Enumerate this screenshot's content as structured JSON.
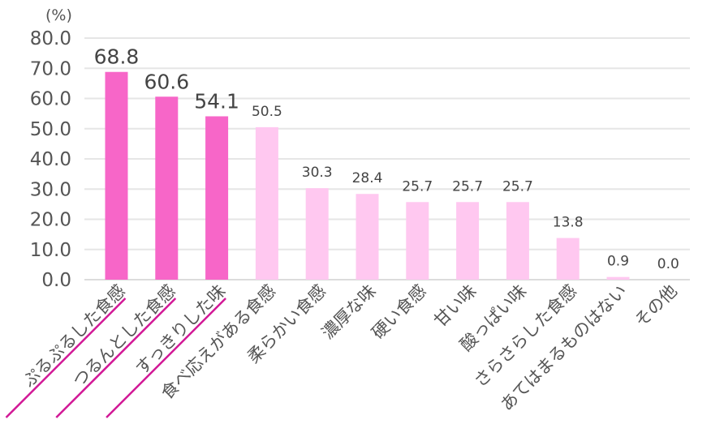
{
  "chart_data": {
    "type": "bar",
    "unit": "(%)",
    "categories": [
      "ぷるぷるした食感",
      "つるんとした食感",
      "すっきりした味",
      "食べ応えがある食感",
      "柔らかい食感",
      "濃厚な味",
      "硬い食感",
      "甘い味",
      "酸っぱい味",
      "さらさらした食感",
      "あてはまるものはない",
      "その他"
    ],
    "values": [
      68.8,
      60.6,
      54.1,
      50.5,
      30.3,
      28.4,
      25.7,
      25.7,
      25.7,
      13.8,
      0.9,
      0.0
    ],
    "value_labels": [
      "68.8",
      "60.6",
      "54.1",
      "50.5",
      "30.3",
      "28.4",
      "25.7",
      "25.7",
      "25.7",
      "13.8",
      "0.9",
      "0.0"
    ],
    "highlight_count": 3,
    "ylim": [
      0,
      80
    ],
    "yticks": [
      "0.0",
      "10.0",
      "20.0",
      "30.0",
      "40.0",
      "50.0",
      "60.0",
      "70.0",
      "80.0"
    ],
    "grid": true,
    "colors": {
      "highlight": "#f766c8",
      "normal": "#ffc8f0",
      "underline": "#d21896"
    }
  }
}
